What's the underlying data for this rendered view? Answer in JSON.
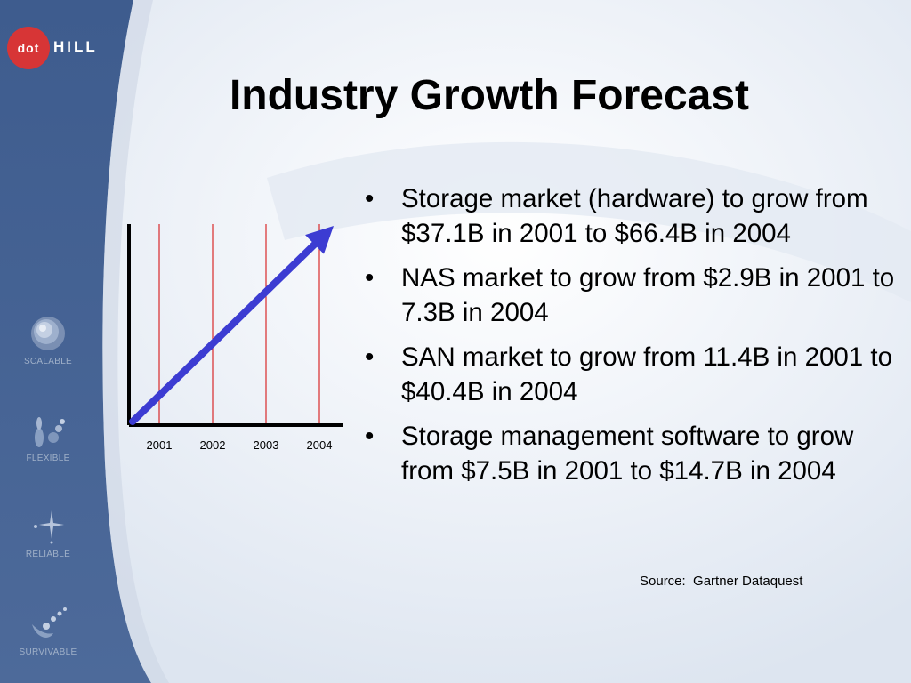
{
  "logo": {
    "dot": "dot",
    "hill": "HILL"
  },
  "sidebar": {
    "badges": [
      {
        "label": "SCALABLE",
        "icon": "spiral-icon"
      },
      {
        "label": "FLEXIBLE",
        "icon": "sprout-icon"
      },
      {
        "label": "RELIABLE",
        "icon": "sparkle-icon"
      },
      {
        "label": "SURVIVABLE",
        "icon": "comet-icon"
      }
    ]
  },
  "title": "Industry Growth Forecast",
  "bullets": [
    "Storage market (hardware) to grow from $37.1B in 2001 to $66.4B in 2004",
    "NAS market to grow from $2.9B in 2001 to 7.3B in 2004",
    "SAN market to grow from 11.4B in 2001 to $40.4B in 2004",
    "Storage management software to grow from $7.5B in 2001 to $14.7B in 2004"
  ],
  "source": "Source:  Gartner Dataquest",
  "colors": {
    "sidebar": "#3c5a8c",
    "logo_red": "#d73536",
    "arrow": "#3c3cd2",
    "gridline": "#d40000"
  },
  "chart_data": {
    "type": "line",
    "categories": [
      "2001",
      "2002",
      "2003",
      "2004"
    ],
    "grid": true,
    "arrow": true
  }
}
